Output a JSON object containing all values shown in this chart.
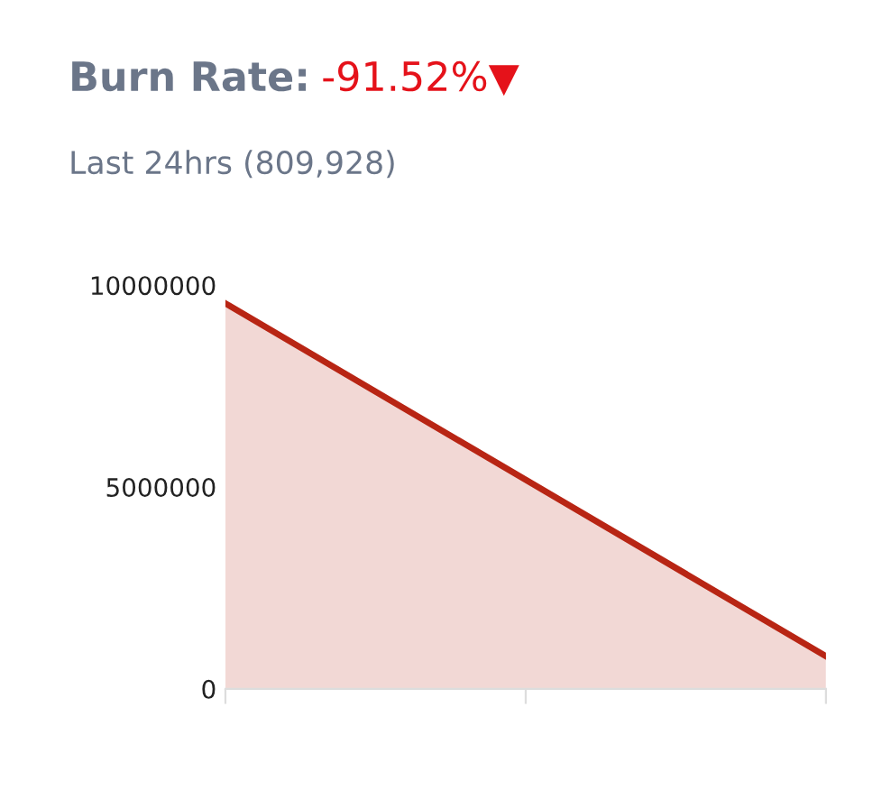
{
  "chart_data": {
    "type": "area",
    "title": "Burn Rate:",
    "subtitle": "Last 24hrs (809,928)",
    "annotations": [
      "-91.52%▼"
    ],
    "categories": [
      null,
      null,
      null
    ],
    "series": [
      {
        "color": "#b82514",
        "values": [
          9550000,
          5180000,
          810000
        ]
      }
    ],
    "ylim": [
      0,
      10000000
    ],
    "yticks": [
      0,
      5000000,
      10000000
    ],
    "grid": false,
    "legend": false,
    "marker": "none",
    "line_style": "solid"
  }
}
